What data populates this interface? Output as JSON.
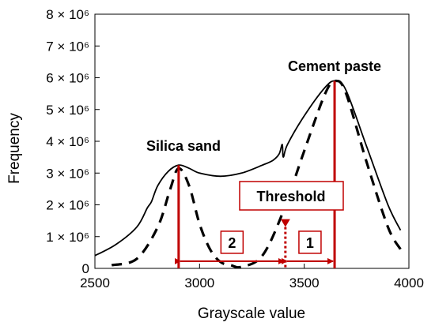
{
  "chart_data": {
    "type": "line",
    "xlabel": "Grayscale value",
    "ylabel": "Frequency",
    "xlim": [
      2500,
      4000
    ],
    "ylim": [
      0,
      8000000
    ],
    "x_ticks": [
      2500,
      3000,
      3500,
      4000
    ],
    "x_tick_labels": [
      "2500",
      "3000",
      "3500",
      "4000"
    ],
    "y_ticks": [
      0,
      1000000,
      2000000,
      3000000,
      4000000,
      5000000,
      6000000,
      7000000,
      8000000
    ],
    "y_tick_labels": [
      "0",
      "1 × 10⁶",
      "2 × 10⁶",
      "3 × 10⁶",
      "4 × 10⁶",
      "5 × 10⁶",
      "6 × 10⁶",
      "7 × 10⁶",
      "8 × 10⁶"
    ],
    "grid": false,
    "series": [
      {
        "style": "solid",
        "color": "#000000",
        "x": [
          2500,
          2600,
          2700,
          2750,
          2770,
          2800,
          2850,
          2900,
          2950,
          3000,
          3100,
          3200,
          3300,
          3350,
          3380,
          3395,
          3400,
          3420,
          3500,
          3600,
          3650,
          3700,
          3800,
          3900,
          3960
        ],
        "y": [
          400000,
          750000,
          1300000,
          1900000,
          2100000,
          2600000,
          3050000,
          3250000,
          3150000,
          3000000,
          2900000,
          3000000,
          3250000,
          3400000,
          3600000,
          3900000,
          3500000,
          3900000,
          4800000,
          5700000,
          5900000,
          5600000,
          3800000,
          2000000,
          1200000
        ]
      },
      {
        "style": "dashed",
        "color": "#000000",
        "x": [
          2580,
          2700,
          2800,
          2860,
          2900,
          2950,
          3000,
          3050,
          3100,
          3150,
          3200,
          3300,
          3400,
          3500,
          3600,
          3650,
          3700,
          3800,
          3900,
          3960
        ],
        "y": [
          100000,
          300000,
          1300000,
          2500000,
          3150000,
          2600000,
          1400000,
          600000,
          200000,
          100000,
          50000,
          400000,
          1800000,
          3700000,
          5500000,
          5900000,
          5500000,
          3300000,
          1300000,
          600000
        ]
      }
    ],
    "vlines": [
      {
        "x": 2900,
        "y_top": 3250000,
        "color": "#c00000",
        "style": "solid"
      },
      {
        "x": 3645,
        "y_top": 5900000,
        "color": "#c00000",
        "style": "solid"
      }
    ],
    "threshold_line": {
      "x": 3410,
      "y_top": 1700000,
      "color": "#c00000",
      "style": "dotted"
    },
    "range_arrows": [
      {
        "from": 2900,
        "to": 3410,
        "y": 300000,
        "label": "2",
        "color": "#c00000"
      },
      {
        "from": 3410,
        "to": 3645,
        "y": 300000,
        "label": "1",
        "color": "#c00000"
      }
    ],
    "annotations": {
      "silica_sand": "Silica sand",
      "cement_paste": "Cement paste",
      "threshold": "Threshold"
    }
  }
}
